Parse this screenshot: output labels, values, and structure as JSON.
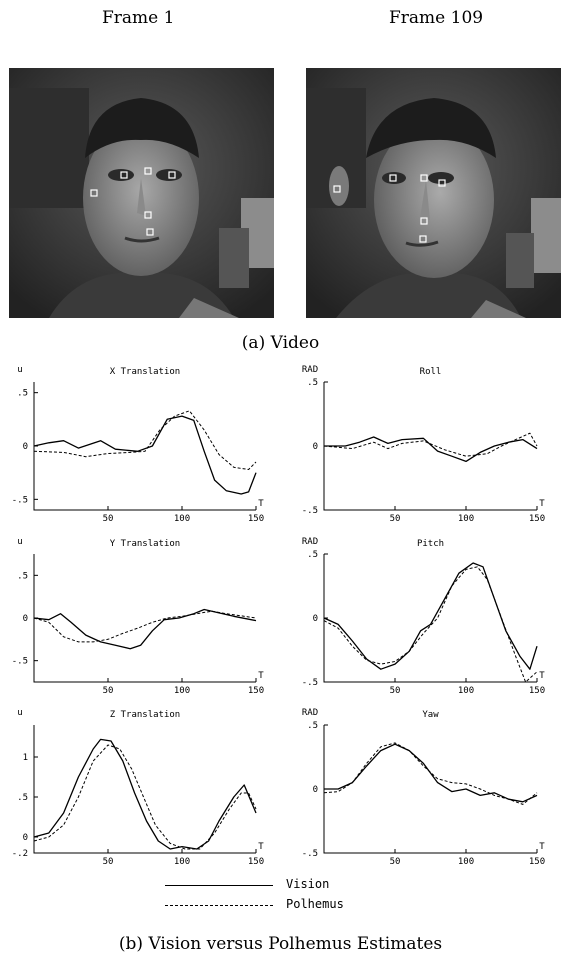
{
  "header_title_partial": "",
  "frames": [
    {
      "label": "Frame 1"
    },
    {
      "label": "Frame 109"
    }
  ],
  "captions": {
    "video": "(a) Video",
    "plots": "(b) Vision versus Polhemus Estimates"
  },
  "legend": {
    "vision": "Vision",
    "polhemus": "Polhemus"
  },
  "chart_data": [
    {
      "type": "line",
      "title": "X Translation",
      "ylabel": "u",
      "xlabel": "T",
      "xlim": [
        0,
        150
      ],
      "ylim": [
        -0.6,
        0.6
      ],
      "xticks": [
        "50",
        "100",
        "150"
      ],
      "yticks": [
        {
          "v": 0.5,
          "label": ".5"
        },
        {
          "v": 0,
          "label": "0"
        },
        {
          "v": -0.5,
          "label": "-.5"
        }
      ],
      "series": [
        {
          "name": "Vision",
          "dash": false,
          "points": [
            [
              0,
              0.0
            ],
            [
              10,
              0.03
            ],
            [
              20,
              0.05
            ],
            [
              30,
              -0.02
            ],
            [
              45,
              0.05
            ],
            [
              55,
              -0.03
            ],
            [
              70,
              -0.05
            ],
            [
              80,
              0.0
            ],
            [
              90,
              0.25
            ],
            [
              100,
              0.28
            ],
            [
              108,
              0.24
            ],
            [
              115,
              -0.05
            ],
            [
              122,
              -0.32
            ],
            [
              130,
              -0.42
            ],
            [
              140,
              -0.45
            ],
            [
              145,
              -0.43
            ],
            [
              150,
              -0.25
            ]
          ]
        },
        {
          "name": "Polhemus",
          "dash": true,
          "points": [
            [
              0,
              -0.05
            ],
            [
              20,
              -0.06
            ],
            [
              35,
              -0.1
            ],
            [
              50,
              -0.07
            ],
            [
              65,
              -0.06
            ],
            [
              75,
              -0.05
            ],
            [
              85,
              0.15
            ],
            [
              95,
              0.28
            ],
            [
              105,
              0.33
            ],
            [
              115,
              0.15
            ],
            [
              125,
              -0.08
            ],
            [
              135,
              -0.2
            ],
            [
              145,
              -0.22
            ],
            [
              150,
              -0.15
            ]
          ]
        }
      ]
    },
    {
      "type": "line",
      "title": "Roll",
      "ylabel": "RAD",
      "xlabel": "T",
      "xlim": [
        0,
        150
      ],
      "ylim": [
        -0.5,
        0.5
      ],
      "xticks": [
        "50",
        "100",
        "150"
      ],
      "yticks": [
        {
          "v": 0.5,
          "label": ".5"
        },
        {
          "v": 0,
          "label": "0"
        },
        {
          "v": -0.5,
          "label": "-.5"
        }
      ],
      "series": [
        {
          "name": "Vision",
          "dash": false,
          "points": [
            [
              0,
              0.0
            ],
            [
              15,
              0.0
            ],
            [
              25,
              0.03
            ],
            [
              35,
              0.07
            ],
            [
              45,
              0.02
            ],
            [
              55,
              0.05
            ],
            [
              70,
              0.06
            ],
            [
              80,
              -0.04
            ],
            [
              90,
              -0.08
            ],
            [
              100,
              -0.12
            ],
            [
              110,
              -0.05
            ],
            [
              120,
              0.0
            ],
            [
              130,
              0.03
            ],
            [
              140,
              0.05
            ],
            [
              150,
              -0.02
            ]
          ]
        },
        {
          "name": "Polhemus",
          "dash": true,
          "points": [
            [
              0,
              0.0
            ],
            [
              20,
              -0.02
            ],
            [
              35,
              0.03
            ],
            [
              45,
              -0.02
            ],
            [
              55,
              0.02
            ],
            [
              70,
              0.04
            ],
            [
              85,
              -0.03
            ],
            [
              100,
              -0.08
            ],
            [
              115,
              -0.06
            ],
            [
              125,
              0.0
            ],
            [
              135,
              0.05
            ],
            [
              145,
              0.1
            ],
            [
              150,
              0.0
            ]
          ]
        }
      ]
    },
    {
      "type": "line",
      "title": "Y Translation",
      "ylabel": "u",
      "xlabel": "T",
      "xlim": [
        0,
        150
      ],
      "ylim": [
        -0.75,
        0.75
      ],
      "xticks": [
        "50",
        "100",
        "150"
      ],
      "yticks": [
        {
          "v": 0.5,
          "label": ".5"
        },
        {
          "v": 0,
          "label": "0"
        },
        {
          "v": -0.5,
          "label": "-.5"
        }
      ],
      "series": [
        {
          "name": "Vision",
          "dash": false,
          "points": [
            [
              0,
              0.0
            ],
            [
              10,
              -0.02
            ],
            [
              18,
              0.05
            ],
            [
              25,
              -0.05
            ],
            [
              35,
              -0.2
            ],
            [
              45,
              -0.28
            ],
            [
              55,
              -0.32
            ],
            [
              65,
              -0.36
            ],
            [
              72,
              -0.32
            ],
            [
              80,
              -0.15
            ],
            [
              88,
              -0.02
            ],
            [
              98,
              0.0
            ],
            [
              108,
              0.05
            ],
            [
              115,
              0.1
            ],
            [
              125,
              0.06
            ],
            [
              135,
              0.02
            ],
            [
              150,
              -0.03
            ]
          ]
        },
        {
          "name": "Polhemus",
          "dash": true,
          "points": [
            [
              0,
              0.0
            ],
            [
              10,
              -0.05
            ],
            [
              20,
              -0.22
            ],
            [
              30,
              -0.28
            ],
            [
              40,
              -0.28
            ],
            [
              50,
              -0.25
            ],
            [
              60,
              -0.18
            ],
            [
              70,
              -0.12
            ],
            [
              80,
              -0.05
            ],
            [
              90,
              0.0
            ],
            [
              100,
              0.02
            ],
            [
              110,
              0.05
            ],
            [
              120,
              0.08
            ],
            [
              130,
              0.05
            ],
            [
              150,
              0.0
            ]
          ]
        }
      ]
    },
    {
      "type": "line",
      "title": "Pitch",
      "ylabel": "RAD",
      "xlabel": "T",
      "xlim": [
        0,
        150
      ],
      "ylim": [
        -0.5,
        0.5
      ],
      "xticks": [
        "50",
        "100",
        "150"
      ],
      "yticks": [
        {
          "v": 0.5,
          "label": ".5"
        },
        {
          "v": 0,
          "label": "0"
        },
        {
          "v": -0.5,
          "label": "-.5"
        }
      ],
      "series": [
        {
          "name": "Vision",
          "dash": false,
          "points": [
            [
              0,
              0.0
            ],
            [
              10,
              -0.05
            ],
            [
              20,
              -0.18
            ],
            [
              30,
              -0.32
            ],
            [
              40,
              -0.4
            ],
            [
              50,
              -0.36
            ],
            [
              60,
              -0.26
            ],
            [
              68,
              -0.1
            ],
            [
              75,
              -0.05
            ],
            [
              85,
              0.15
            ],
            [
              95,
              0.35
            ],
            [
              105,
              0.43
            ],
            [
              112,
              0.4
            ],
            [
              120,
              0.15
            ],
            [
              128,
              -0.1
            ],
            [
              138,
              -0.3
            ],
            [
              145,
              -0.4
            ],
            [
              150,
              -0.22
            ]
          ]
        },
        {
          "name": "Polhemus",
          "dash": true,
          "points": [
            [
              0,
              -0.02
            ],
            [
              10,
              -0.08
            ],
            [
              20,
              -0.22
            ],
            [
              30,
              -0.33
            ],
            [
              40,
              -0.36
            ],
            [
              50,
              -0.34
            ],
            [
              60,
              -0.26
            ],
            [
              70,
              -0.12
            ],
            [
              80,
              0.0
            ],
            [
              90,
              0.25
            ],
            [
              100,
              0.38
            ],
            [
              108,
              0.4
            ],
            [
              115,
              0.3
            ],
            [
              125,
              0.0
            ],
            [
              135,
              -0.3
            ],
            [
              142,
              -0.5
            ],
            [
              150,
              -0.42
            ]
          ]
        }
      ]
    },
    {
      "type": "line",
      "title": "Z Translation",
      "ylabel": "u",
      "xlabel": "T",
      "xlim": [
        0,
        150
      ],
      "ylim": [
        -0.2,
        1.4
      ],
      "xticks": [
        "50",
        "100",
        "150"
      ],
      "yticks": [
        {
          "v": 1,
          "label": "1"
        },
        {
          "v": 0.5,
          "label": ".5"
        },
        {
          "v": 0,
          "label": "0"
        },
        {
          "v": -0.2,
          "label": "-.2"
        }
      ],
      "series": [
        {
          "name": "Vision",
          "dash": false,
          "points": [
            [
              0,
              0.0
            ],
            [
              10,
              0.05
            ],
            [
              20,
              0.3
            ],
            [
              30,
              0.75
            ],
            [
              40,
              1.1
            ],
            [
              45,
              1.22
            ],
            [
              52,
              1.2
            ],
            [
              60,
              0.95
            ],
            [
              68,
              0.55
            ],
            [
              76,
              0.2
            ],
            [
              84,
              -0.05
            ],
            [
              92,
              -0.15
            ],
            [
              100,
              -0.12
            ],
            [
              110,
              -0.15
            ],
            [
              118,
              -0.05
            ],
            [
              125,
              0.2
            ],
            [
              135,
              0.5
            ],
            [
              142,
              0.65
            ],
            [
              150,
              0.3
            ]
          ]
        },
        {
          "name": "Polhemus",
          "dash": true,
          "points": [
            [
              0,
              -0.05
            ],
            [
              10,
              0.0
            ],
            [
              20,
              0.15
            ],
            [
              30,
              0.5
            ],
            [
              40,
              0.95
            ],
            [
              50,
              1.15
            ],
            [
              58,
              1.1
            ],
            [
              66,
              0.85
            ],
            [
              74,
              0.5
            ],
            [
              82,
              0.15
            ],
            [
              92,
              -0.08
            ],
            [
              102,
              -0.15
            ],
            [
              112,
              -0.15
            ],
            [
              122,
              0.05
            ],
            [
              132,
              0.35
            ],
            [
              140,
              0.55
            ],
            [
              145,
              0.55
            ],
            [
              150,
              0.35
            ]
          ]
        }
      ]
    },
    {
      "type": "line",
      "title": "Yaw",
      "ylabel": "RAD",
      "xlabel": "T",
      "xlim": [
        0,
        150
      ],
      "ylim": [
        -0.5,
        0.5
      ],
      "xticks": [
        "50",
        "100",
        "150"
      ],
      "yticks": [
        {
          "v": 0.5,
          "label": ".5"
        },
        {
          "v": 0,
          "label": "0"
        },
        {
          "v": -0.5,
          "label": "-.5"
        }
      ],
      "series": [
        {
          "name": "Vision",
          "dash": false,
          "points": [
            [
              0,
              0.0
            ],
            [
              10,
              0.0
            ],
            [
              20,
              0.05
            ],
            [
              30,
              0.18
            ],
            [
              40,
              0.3
            ],
            [
              50,
              0.35
            ],
            [
              60,
              0.3
            ],
            [
              70,
              0.2
            ],
            [
              80,
              0.05
            ],
            [
              90,
              -0.02
            ],
            [
              100,
              0.0
            ],
            [
              110,
              -0.05
            ],
            [
              120,
              -0.03
            ],
            [
              130,
              -0.08
            ],
            [
              140,
              -0.1
            ],
            [
              150,
              -0.05
            ]
          ]
        },
        {
          "name": "Polhemus",
          "dash": true,
          "points": [
            [
              0,
              -0.03
            ],
            [
              10,
              -0.02
            ],
            [
              20,
              0.05
            ],
            [
              30,
              0.2
            ],
            [
              40,
              0.33
            ],
            [
              50,
              0.36
            ],
            [
              60,
              0.3
            ],
            [
              70,
              0.18
            ],
            [
              80,
              0.08
            ],
            [
              90,
              0.05
            ],
            [
              100,
              0.04
            ],
            [
              110,
              0.0
            ],
            [
              120,
              -0.05
            ],
            [
              130,
              -0.08
            ],
            [
              140,
              -0.12
            ],
            [
              150,
              -0.03
            ]
          ]
        }
      ]
    }
  ]
}
